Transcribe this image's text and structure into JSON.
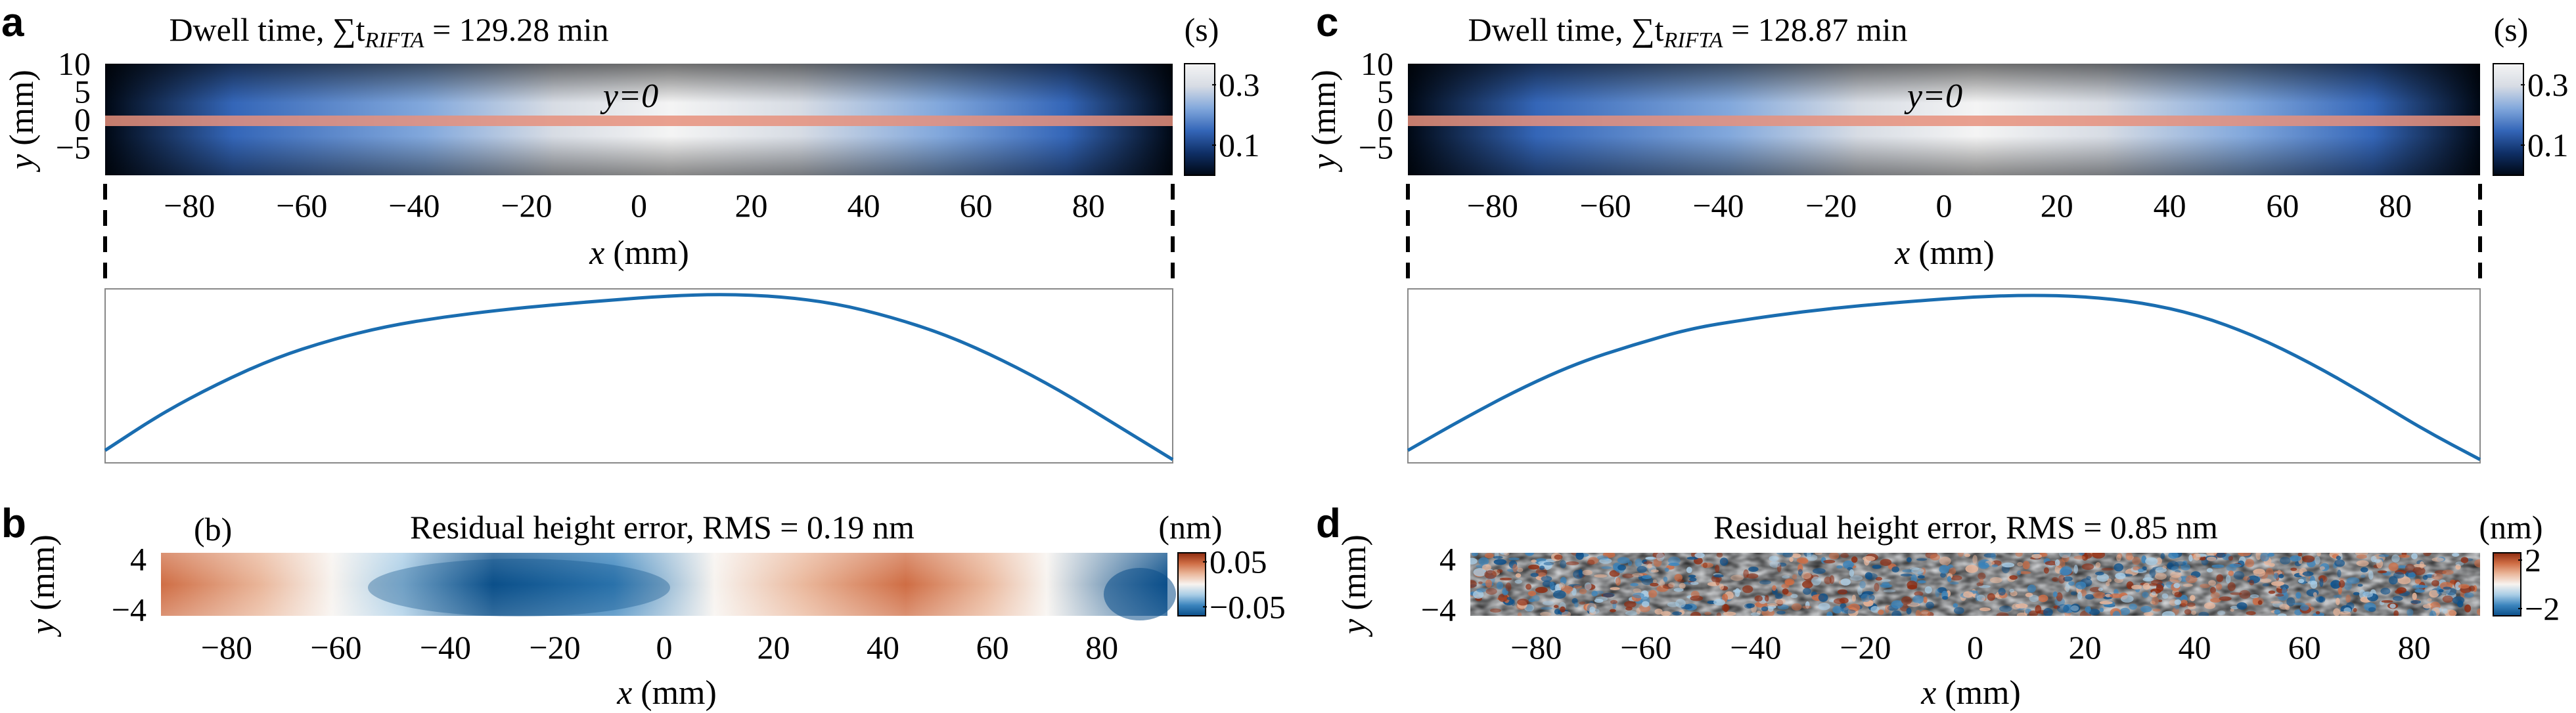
{
  "chart_data": [
    {
      "panel": "a",
      "type": "heatmap",
      "title_prefix": "Dwell time, ",
      "title_sum": "∑t",
      "title_sub": "RIFTA",
      "title_suffix": " = 129.28 min",
      "xlabel_var": "x",
      "xlabel_unit": " (mm)",
      "ylabel_var": "y",
      "ylabel_unit": " (mm)",
      "x_ticks": [
        "−80",
        "−60",
        "−40",
        "−20",
        "0",
        "20",
        "40",
        "60",
        "80"
      ],
      "x_tick_values": [
        -80,
        -60,
        -40,
        -20,
        0,
        20,
        40,
        60,
        80
      ],
      "y_ticks": [
        "10",
        "5",
        "0",
        "−5"
      ],
      "y_tick_values": [
        10,
        5,
        0,
        -5
      ],
      "xlim": [
        -95,
        95
      ],
      "ylim": [
        -10,
        10
      ],
      "colorbar_unit": "(s)",
      "colorbar_ticks": [
        "0.3",
        "0.1"
      ],
      "colorbar_tick_values": [
        0.3,
        0.1
      ],
      "colorbar_range": [
        0.0,
        0.37
      ],
      "colormap": [
        "#000814",
        "#0f2f66",
        "#3466b8",
        "#82a8dc",
        "#d7dce4",
        "#f4f4f4"
      ],
      "annotation": "y=0",
      "line_color": "#e6907d",
      "profile": {
        "type": "line",
        "color": "#1a6db0",
        "x": [
          -95,
          -85,
          -75,
          -65,
          -55,
          -45,
          -35,
          -25,
          -15,
          -5,
          5,
          15,
          25,
          35,
          45,
          55,
          65,
          75,
          85,
          95
        ],
        "y": [
          0.02,
          0.1,
          0.165,
          0.22,
          0.26,
          0.29,
          0.31,
          0.325,
          0.337,
          0.347,
          0.356,
          0.36,
          0.355,
          0.34,
          0.31,
          0.27,
          0.215,
          0.15,
          0.075,
          0.0
        ]
      }
    },
    {
      "panel": "c",
      "type": "heatmap",
      "title_prefix": "Dwell time, ",
      "title_sum": "∑t",
      "title_sub": "RIFTA",
      "title_suffix": " = 128.87 min",
      "xlabel_var": "x",
      "xlabel_unit": " (mm)",
      "ylabel_var": "y",
      "ylabel_unit": " (mm)",
      "x_ticks": [
        "−80",
        "−60",
        "−40",
        "−20",
        "0",
        "20",
        "40",
        "60",
        "80"
      ],
      "x_tick_values": [
        -80,
        -60,
        -40,
        -20,
        0,
        20,
        40,
        60,
        80
      ],
      "y_ticks": [
        "10",
        "5",
        "0",
        "−5"
      ],
      "y_tick_values": [
        10,
        5,
        0,
        -5
      ],
      "xlim": [
        -95,
        95
      ],
      "ylim": [
        -10,
        10
      ],
      "colorbar_unit": "(s)",
      "colorbar_ticks": [
        "0.3",
        "0.1"
      ],
      "colorbar_tick_values": [
        0.3,
        0.1
      ],
      "colorbar_range": [
        0.0,
        0.37
      ],
      "colormap": [
        "#000814",
        "#0f2f66",
        "#3466b8",
        "#82a8dc",
        "#d7dce4",
        "#f4f4f4"
      ],
      "annotation": "y=0",
      "line_color": "#e6907d",
      "profile": {
        "type": "line",
        "color": "#1a6db0",
        "x": [
          -95,
          -85,
          -75,
          -65,
          -55,
          -45,
          -35,
          -25,
          -15,
          -5,
          5,
          15,
          25,
          35,
          45,
          55,
          65,
          75,
          85,
          95
        ],
        "y": [
          0.02,
          0.09,
          0.155,
          0.21,
          0.25,
          0.285,
          0.305,
          0.322,
          0.335,
          0.345,
          0.354,
          0.358,
          0.355,
          0.342,
          0.315,
          0.27,
          0.21,
          0.14,
          0.065,
          0.0
        ]
      }
    },
    {
      "panel": "b",
      "type": "heatmap",
      "inset_label": "(b)",
      "title": "Residual height error, RMS = 0.19 nm",
      "xlabel_var": "x",
      "xlabel_unit": " (mm)",
      "ylabel_var": "y",
      "ylabel_unit": " (mm)",
      "x_ticks": [
        "−80",
        "−60",
        "−40",
        "−20",
        "0",
        "20",
        "40",
        "60",
        "80"
      ],
      "x_tick_values": [
        -80,
        -60,
        -40,
        -20,
        0,
        20,
        40,
        60,
        80
      ],
      "y_ticks": [
        "4",
        "−4"
      ],
      "y_tick_values": [
        4,
        -4
      ],
      "xlim": [
        -92,
        92
      ],
      "ylim": [
        -5,
        5
      ],
      "colorbar_unit": "(nm)",
      "colorbar_ticks": [
        "0.05",
        "−0.05"
      ],
      "colorbar_tick_values": [
        0.05,
        -0.05
      ],
      "colorbar_range": [
        -0.07,
        0.07
      ],
      "colormap": [
        "#0b4f8a",
        "#3a84bd",
        "#a9cde6",
        "#f7f3ef",
        "#eab79b",
        "#cf6d44",
        "#8e2b10"
      ]
    },
    {
      "panel": "d",
      "type": "heatmap",
      "title": "Residual height error, RMS = 0.85 nm",
      "xlabel_var": "x",
      "xlabel_unit": " (mm)",
      "ylabel_var": "y",
      "ylabel_unit": " (mm)",
      "x_ticks": [
        "−80",
        "−60",
        "−40",
        "−20",
        "0",
        "20",
        "40",
        "60",
        "80"
      ],
      "x_tick_values": [
        -80,
        -60,
        -40,
        -20,
        0,
        20,
        40,
        60,
        80
      ],
      "y_ticks": [
        "4",
        "−4"
      ],
      "y_tick_values": [
        4,
        -4
      ],
      "xlim": [
        -92,
        92
      ],
      "ylim": [
        -5,
        5
      ],
      "colorbar_unit": "(nm)",
      "colorbar_ticks": [
        "2",
        "−2"
      ],
      "colorbar_tick_values": [
        2,
        -2
      ],
      "colorbar_range": [
        -2.6,
        2.6
      ],
      "colormap": [
        "#0b4f8a",
        "#3a84bd",
        "#a9cde6",
        "#f7f3ef",
        "#eab79b",
        "#cf6d44",
        "#8e2b10"
      ]
    }
  ]
}
